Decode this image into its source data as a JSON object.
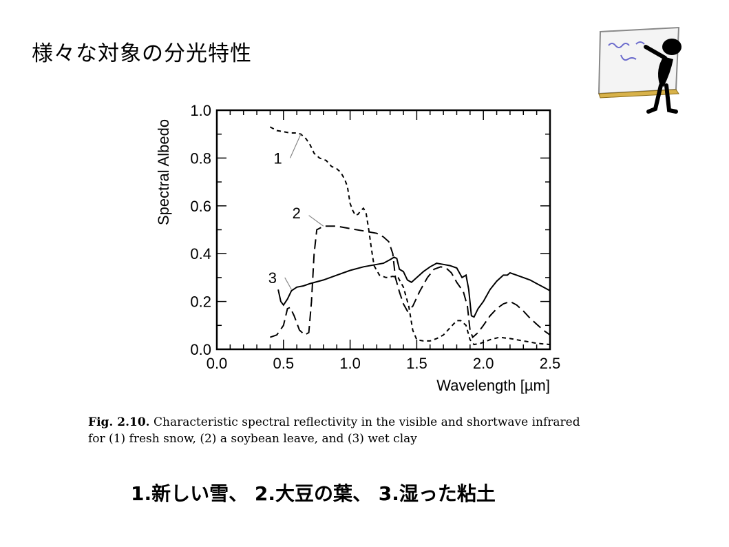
{
  "slide": {
    "title": "様々な対象の分光特性",
    "caption_label": "Fig. 2.10.",
    "caption_line1": " Characteristic spectral reflectivity in the visible and shortwave infrared",
    "caption_line2": "for (1) fresh snow, (2) a soybean leave, and (3) wet clay",
    "summary": "1.新しい雪、 2.大豆の葉、 3.湿った粘土"
  },
  "chart_data": {
    "type": "line",
    "title": "",
    "xlabel": "Wavelength [µm]",
    "ylabel": "Spectral  Albedo",
    "xlim": [
      0.0,
      2.5
    ],
    "ylim": [
      0.0,
      1.0
    ],
    "x_ticks": [
      "0.0",
      "0.5",
      "1.0",
      "1.5",
      "2.0",
      "2.5"
    ],
    "y_ticks": [
      "0.0",
      "0.2",
      "0.4",
      "0.6",
      "0.8",
      "1.0"
    ],
    "grid": false,
    "series": [
      {
        "name": "1",
        "style": "short-dash",
        "label_at": [
          0.53,
          0.8
        ],
        "points": [
          [
            0.4,
            0.93
          ],
          [
            0.45,
            0.915
          ],
          [
            0.5,
            0.91
          ],
          [
            0.55,
            0.905
          ],
          [
            0.6,
            0.905
          ],
          [
            0.63,
            0.9
          ],
          [
            0.67,
            0.88
          ],
          [
            0.7,
            0.855
          ],
          [
            0.73,
            0.82
          ],
          [
            0.77,
            0.8
          ],
          [
            0.82,
            0.79
          ],
          [
            0.86,
            0.765
          ],
          [
            0.9,
            0.755
          ],
          [
            0.93,
            0.74
          ],
          [
            0.96,
            0.71
          ],
          [
            0.98,
            0.68
          ],
          [
            1.0,
            0.61
          ],
          [
            1.02,
            0.58
          ],
          [
            1.04,
            0.56
          ],
          [
            1.06,
            0.565
          ],
          [
            1.08,
            0.58
          ],
          [
            1.1,
            0.59
          ],
          [
            1.12,
            0.57
          ],
          [
            1.14,
            0.5
          ],
          [
            1.16,
            0.42
          ],
          [
            1.18,
            0.35
          ],
          [
            1.22,
            0.31
          ],
          [
            1.27,
            0.3
          ],
          [
            1.32,
            0.305
          ],
          [
            1.36,
            0.3
          ],
          [
            1.4,
            0.26
          ],
          [
            1.44,
            0.18
          ],
          [
            1.47,
            0.08
          ],
          [
            1.5,
            0.04
          ],
          [
            1.55,
            0.035
          ],
          [
            1.6,
            0.035
          ],
          [
            1.65,
            0.045
          ],
          [
            1.7,
            0.06
          ],
          [
            1.75,
            0.09
          ],
          [
            1.8,
            0.12
          ],
          [
            1.83,
            0.12
          ],
          [
            1.87,
            0.1
          ],
          [
            1.9,
            0.04
          ],
          [
            1.93,
            0.02
          ],
          [
            1.98,
            0.025
          ],
          [
            2.05,
            0.04
          ],
          [
            2.12,
            0.05
          ],
          [
            2.2,
            0.045
          ],
          [
            2.3,
            0.035
          ],
          [
            2.4,
            0.025
          ],
          [
            2.5,
            0.02
          ]
        ]
      },
      {
        "name": "2",
        "style": "long-dash",
        "label_at": [
          0.67,
          0.57
        ],
        "points": [
          [
            0.4,
            0.05
          ],
          [
            0.45,
            0.06
          ],
          [
            0.5,
            0.1
          ],
          [
            0.53,
            0.17
          ],
          [
            0.55,
            0.175
          ],
          [
            0.58,
            0.14
          ],
          [
            0.62,
            0.08
          ],
          [
            0.66,
            0.06
          ],
          [
            0.69,
            0.07
          ],
          [
            0.71,
            0.2
          ],
          [
            0.73,
            0.4
          ],
          [
            0.75,
            0.5
          ],
          [
            0.8,
            0.515
          ],
          [
            0.9,
            0.515
          ],
          [
            1.0,
            0.505
          ],
          [
            1.1,
            0.495
          ],
          [
            1.2,
            0.485
          ],
          [
            1.25,
            0.47
          ],
          [
            1.29,
            0.45
          ],
          [
            1.32,
            0.4
          ],
          [
            1.34,
            0.3
          ],
          [
            1.37,
            0.24
          ],
          [
            1.4,
            0.19
          ],
          [
            1.43,
            0.16
          ],
          [
            1.47,
            0.18
          ],
          [
            1.52,
            0.24
          ],
          [
            1.58,
            0.3
          ],
          [
            1.63,
            0.335
          ],
          [
            1.68,
            0.345
          ],
          [
            1.72,
            0.34
          ],
          [
            1.76,
            0.32
          ],
          [
            1.8,
            0.28
          ],
          [
            1.85,
            0.24
          ],
          [
            1.88,
            0.18
          ],
          [
            1.9,
            0.08
          ],
          [
            1.92,
            0.05
          ],
          [
            1.96,
            0.07
          ],
          [
            2.0,
            0.1
          ],
          [
            2.05,
            0.14
          ],
          [
            2.1,
            0.17
          ],
          [
            2.15,
            0.19
          ],
          [
            2.2,
            0.2
          ],
          [
            2.25,
            0.185
          ],
          [
            2.3,
            0.16
          ],
          [
            2.35,
            0.13
          ],
          [
            2.4,
            0.105
          ],
          [
            2.45,
            0.08
          ],
          [
            2.5,
            0.06
          ]
        ]
      },
      {
        "name": "3",
        "style": "solid",
        "label_at": [
          0.49,
          0.3
        ],
        "points": [
          [
            0.46,
            0.25
          ],
          [
            0.48,
            0.2
          ],
          [
            0.5,
            0.185
          ],
          [
            0.53,
            0.21
          ],
          [
            0.56,
            0.245
          ],
          [
            0.6,
            0.26
          ],
          [
            0.65,
            0.265
          ],
          [
            0.7,
            0.275
          ],
          [
            0.8,
            0.29
          ],
          [
            0.9,
            0.31
          ],
          [
            1.0,
            0.33
          ],
          [
            1.1,
            0.345
          ],
          [
            1.2,
            0.355
          ],
          [
            1.25,
            0.36
          ],
          [
            1.3,
            0.375
          ],
          [
            1.33,
            0.385
          ],
          [
            1.35,
            0.38
          ],
          [
            1.37,
            0.335
          ],
          [
            1.4,
            0.325
          ],
          [
            1.43,
            0.29
          ],
          [
            1.46,
            0.28
          ],
          [
            1.5,
            0.3
          ],
          [
            1.55,
            0.325
          ],
          [
            1.6,
            0.345
          ],
          [
            1.65,
            0.36
          ],
          [
            1.7,
            0.355
          ],
          [
            1.75,
            0.35
          ],
          [
            1.8,
            0.34
          ],
          [
            1.84,
            0.3
          ],
          [
            1.87,
            0.31
          ],
          [
            1.89,
            0.25
          ],
          [
            1.91,
            0.14
          ],
          [
            1.93,
            0.135
          ],
          [
            1.96,
            0.17
          ],
          [
            2.0,
            0.2
          ],
          [
            2.05,
            0.25
          ],
          [
            2.1,
            0.285
          ],
          [
            2.15,
            0.31
          ],
          [
            2.18,
            0.31
          ],
          [
            2.2,
            0.32
          ],
          [
            2.25,
            0.31
          ],
          [
            2.3,
            0.3
          ],
          [
            2.35,
            0.29
          ],
          [
            2.4,
            0.275
          ],
          [
            2.45,
            0.26
          ],
          [
            2.5,
            0.245
          ]
        ]
      }
    ]
  }
}
